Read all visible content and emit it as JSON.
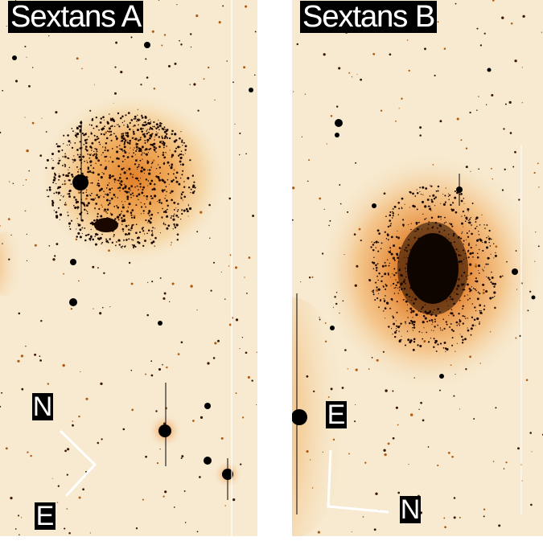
{
  "panels": [
    {
      "title": "Sextans A",
      "compass": {
        "n_label": "N",
        "e_label": "E"
      }
    },
    {
      "title": "Sextans B",
      "compass": {
        "n_label": "N",
        "e_label": "E"
      }
    }
  ],
  "colors": {
    "background": "#f7ead0",
    "glow": "#f0a040",
    "core": "#000000",
    "label_bg": "#000000",
    "label_fg": "#ffffff",
    "arrow": "#ffffff"
  }
}
